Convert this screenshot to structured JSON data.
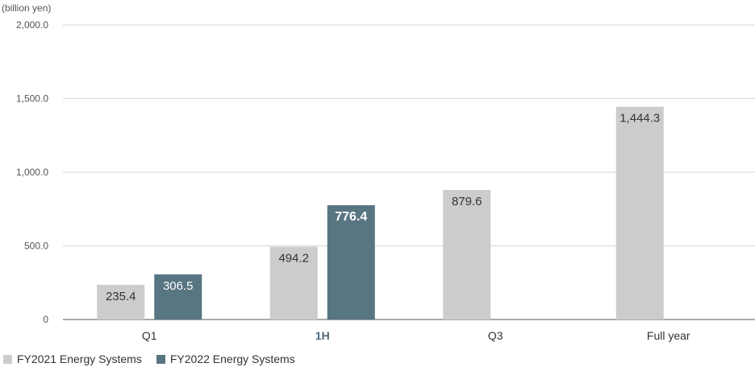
{
  "chart_data": {
    "type": "bar",
    "unit_label": "(billion yen)",
    "categories": [
      "Q1",
      "1H",
      "Q3",
      "Full year"
    ],
    "highlight_category": "1H",
    "yticks": [
      "0",
      "500.0",
      "1,000.0",
      "1,500.0",
      "2,000.0"
    ],
    "ylim": [
      0,
      2000
    ],
    "grid": true,
    "legend_position": "bottom-left",
    "series": [
      {
        "name": "FY2021 Energy Systems",
        "color": "#cccccc",
        "values": [
          235.4,
          494.2,
          879.6,
          1444.3
        ],
        "labels": [
          "235.4",
          "494.2",
          "879.6",
          "1,444.3"
        ]
      },
      {
        "name": "FY2022 Energy Systems",
        "color": "#587582",
        "values": [
          306.5,
          776.4,
          null,
          null
        ],
        "labels": [
          "306.5",
          "776.4",
          "",
          ""
        ]
      }
    ]
  }
}
